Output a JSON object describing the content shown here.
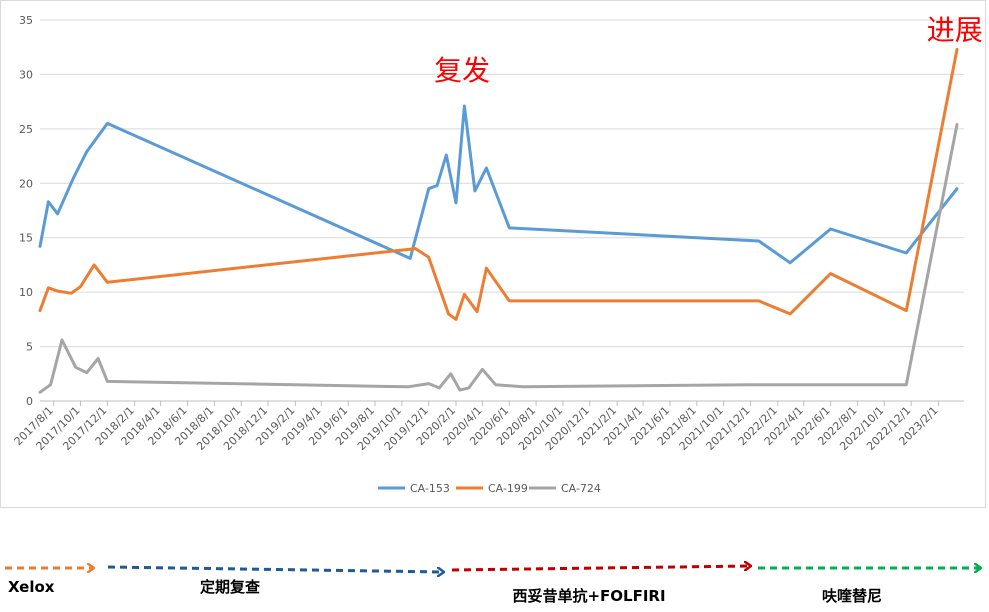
{
  "chart_data": {
    "type": "line",
    "yticks": [
      "0",
      "5",
      "10",
      "15",
      "20",
      "25",
      "30",
      "35"
    ],
    "ylim": [
      0,
      35
    ],
    "grid": true,
    "legend_position": "bottom",
    "x_range": [
      "2017-07-01",
      "2023-03-31"
    ],
    "xticks": [
      "2017/8/1",
      "2017/10/1",
      "2017/12/1",
      "2018/2/1",
      "2018/4/1",
      "2018/6/1",
      "2018/8/1",
      "2018/10/1",
      "2018/12/1",
      "2019/2/1",
      "2019/4/1",
      "2019/6/1",
      "2019/8/1",
      "2019/10/1",
      "2019/12/1",
      "2020/2/1",
      "2020/4/1",
      "2020/6/1",
      "2020/8/1",
      "2020/10/1",
      "2020/12/1",
      "2021/2/1",
      "2021/4/1",
      "2021/6/1",
      "2021/8/1",
      "2021/10/1",
      "2021/12/1",
      "2022/2/1",
      "2022/4/1",
      "2022/6/1",
      "2022/8/1",
      "2022/10/1",
      "2022/12/1",
      "2023/2/1"
    ],
    "series": [
      {
        "name": "CA-153",
        "color": "#5b9bd5",
        "points": [
          [
            "2017-07-01",
            14.2
          ],
          [
            "2017-07-20",
            18.3
          ],
          [
            "2017-08-10",
            17.2
          ],
          [
            "2017-09-15",
            20.5
          ],
          [
            "2017-10-15",
            22.9
          ],
          [
            "2017-12-01",
            25.5
          ],
          [
            "2019-10-20",
            13.1
          ],
          [
            "2019-12-01",
            19.5
          ],
          [
            "2019-12-20",
            19.8
          ],
          [
            "2020-01-10",
            22.6
          ],
          [
            "2020-02-01",
            18.2
          ],
          [
            "2020-02-20",
            27.1
          ],
          [
            "2020-03-15",
            19.3
          ],
          [
            "2020-04-10",
            21.4
          ],
          [
            "2020-06-01",
            15.9
          ],
          [
            "2021-12-20",
            14.7
          ],
          [
            "2022-03-01",
            12.7
          ],
          [
            "2022-06-01",
            15.8
          ],
          [
            "2022-11-20",
            13.6
          ],
          [
            "2023-03-15",
            19.5
          ]
        ]
      },
      {
        "name": "CA-199",
        "color": "#ed7d31",
        "points": [
          [
            "2017-07-01",
            8.3
          ],
          [
            "2017-07-20",
            10.4
          ],
          [
            "2017-08-10",
            10.1
          ],
          [
            "2017-09-10",
            9.9
          ],
          [
            "2017-10-01",
            10.5
          ],
          [
            "2017-11-01",
            12.5
          ],
          [
            "2017-12-01",
            10.9
          ],
          [
            "2019-11-01",
            14.0
          ],
          [
            "2019-12-01",
            13.2
          ],
          [
            "2020-01-15",
            8.0
          ],
          [
            "2020-02-01",
            7.5
          ],
          [
            "2020-02-20",
            9.8
          ],
          [
            "2020-03-20",
            8.2
          ],
          [
            "2020-04-10",
            12.2
          ],
          [
            "2020-06-01",
            9.2
          ],
          [
            "2021-12-20",
            9.2
          ],
          [
            "2022-03-01",
            8.0
          ],
          [
            "2022-06-01",
            11.7
          ],
          [
            "2022-11-20",
            8.3
          ],
          [
            "2023-03-15",
            32.3
          ]
        ]
      },
      {
        "name": "CA-724",
        "color": "#a5a5a5",
        "points": [
          [
            "2017-07-01",
            0.8
          ],
          [
            "2017-07-25",
            1.5
          ],
          [
            "2017-08-20",
            5.6
          ],
          [
            "2017-09-20",
            3.1
          ],
          [
            "2017-10-15",
            2.6
          ],
          [
            "2017-11-10",
            3.9
          ],
          [
            "2017-12-01",
            1.8
          ],
          [
            "2019-10-15",
            1.3
          ],
          [
            "2019-12-01",
            1.6
          ],
          [
            "2019-12-25",
            1.2
          ],
          [
            "2020-01-20",
            2.5
          ],
          [
            "2020-02-10",
            1.0
          ],
          [
            "2020-03-01",
            1.2
          ],
          [
            "2020-04-01",
            2.9
          ],
          [
            "2020-05-01",
            1.5
          ],
          [
            "2020-07-01",
            1.3
          ],
          [
            "2021-12-01",
            1.5
          ],
          [
            "2022-11-20",
            1.5
          ],
          [
            "2023-03-15",
            25.4
          ]
        ]
      }
    ],
    "annotations": [
      {
        "text": "复发",
        "date": "2020-02-15",
        "value": 29.5
      },
      {
        "text": "进展",
        "date": "2023-03-10",
        "value": 33.2
      }
    ]
  },
  "phases": [
    {
      "label": "Xelox",
      "color": "#ed7d31"
    },
    {
      "label": "定期复查",
      "color": "#1f5a96"
    },
    {
      "label": "西妥昔单抗+FOLFIRI",
      "color": "#c00000"
    },
    {
      "label": "呋喹替尼",
      "color": "#00b050"
    }
  ]
}
